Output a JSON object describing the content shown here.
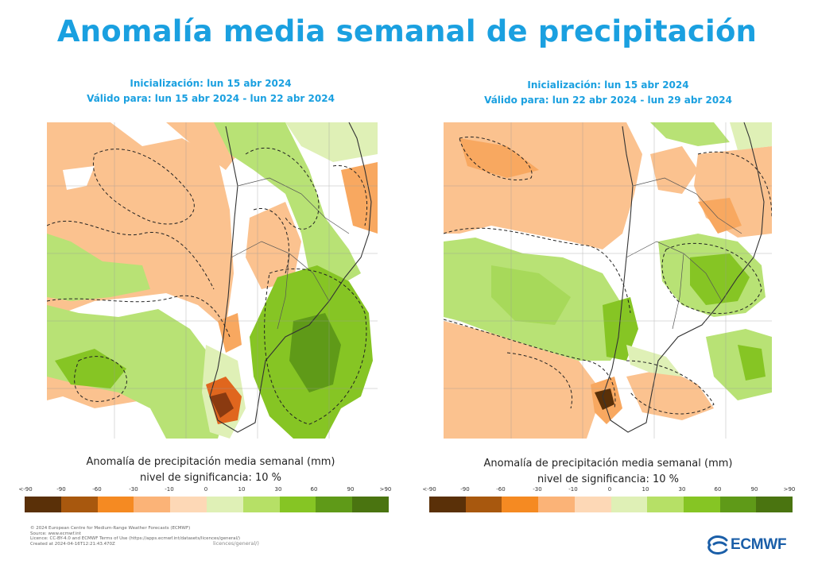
{
  "title": "Anomalía media semanal de precipitación",
  "panels": [
    {
      "init_line": "Inicialización: lun 15 abr 2024",
      "valid_line": "Válido para: lun 15 abr 2024 - lun 22 abr 2024",
      "caption_line1": "Anomalía de precipitación media semanal (mm)",
      "caption_line2": "nivel de significancia: 10 %"
    },
    {
      "init_line": "Inicialización: lun 15 abr 2024",
      "valid_line": "Válido para: lun 22 abr 2024 - lun 29 abr 2024",
      "caption_line1": "Anomalía de precipitación media semanal (mm)",
      "caption_line2": "nivel de significancia: 10 %"
    }
  ],
  "legend": {
    "labels": [
      "<-90",
      "-90",
      "-60",
      "-30",
      "-10",
      "0",
      "10",
      "30",
      "60",
      "90",
      ">90"
    ],
    "colors": [
      "#5a3008",
      "#a8580e",
      "#f58a22",
      "#fbb377",
      "#fdd8b6",
      "#ffffff",
      "#dff0b6",
      "#b6e066",
      "#86c524",
      "#5f9a18",
      "#4a7410"
    ]
  },
  "footer": {
    "line1": "© 2024 European Centre for Medium-Range Weather Forecasts (ECMWF)",
    "line2": "Source: www.ecmwf.int",
    "line3": "Licence: CC-BY-4.0 and ECMWF Terms of Use (https://apps.ecmwf.int/datasets/licences/general/)",
    "line4": "Created at 2024-04-16T12:21:43.470Z",
    "extra": "licences/general/)"
  },
  "logo_text": "ECMWF"
}
